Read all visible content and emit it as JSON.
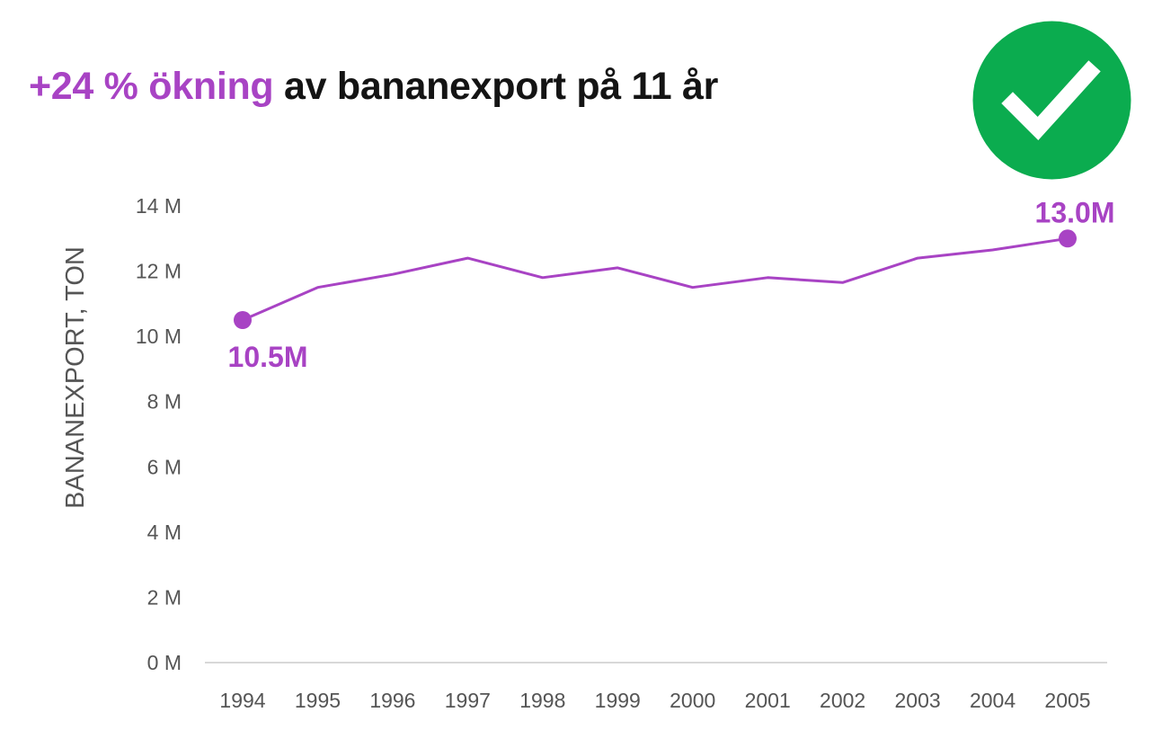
{
  "headline": {
    "highlight": "+24 % ökning",
    "rest": " av bananexport på 11 år"
  },
  "badge": {
    "icon": "check-icon",
    "color": "#0bac4f"
  },
  "colors": {
    "accent": "#a843c4",
    "text": "#141414",
    "axis": "#555555",
    "baseline": "#cccccc"
  },
  "chart_data": {
    "type": "line",
    "title": "",
    "xlabel": "",
    "ylabel": "BANANEXPORT, TON",
    "x": [
      1994,
      1995,
      1996,
      1997,
      1998,
      1999,
      2000,
      2001,
      2002,
      2003,
      2004,
      2005
    ],
    "series": [
      {
        "values": [
          10.5,
          11.5,
          11.9,
          12.4,
          11.8,
          12.1,
          11.5,
          11.8,
          11.65,
          12.4,
          12.65,
          13.0
        ]
      }
    ],
    "ylim": [
      0,
      14
    ],
    "yticks": [
      0,
      2,
      4,
      6,
      8,
      10,
      12,
      14
    ],
    "ytick_labels": [
      "0 M",
      "2 M",
      "4 M",
      "6 M",
      "8 M",
      "10 M",
      "12 M",
      "14 M"
    ],
    "xtick_labels": [
      "1994",
      "1995",
      "1996",
      "1997",
      "1998",
      "1999",
      "2000",
      "2001",
      "2002",
      "2003",
      "2004",
      "2005"
    ],
    "annotations": [
      {
        "index": 0,
        "text": "10.5M"
      },
      {
        "index": 11,
        "text": "13.0M"
      }
    ],
    "grid": false,
    "legend": "none"
  }
}
